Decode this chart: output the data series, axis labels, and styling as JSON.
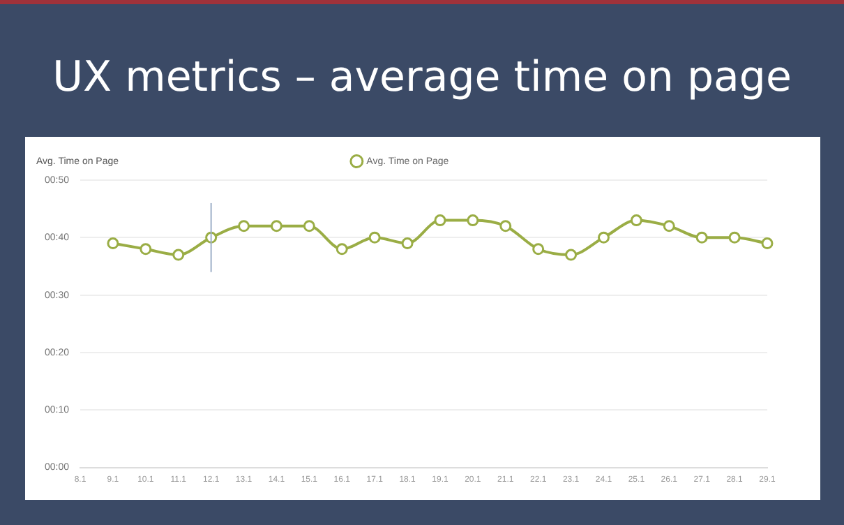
{
  "chart_data": {
    "type": "line",
    "title": "UX metrics – average time on page",
    "ylabel": "Avg. Time on Page",
    "categories": [
      "8.1",
      "9.1",
      "10.1",
      "11.1",
      "12.1",
      "13.1",
      "14.1",
      "15.1",
      "16.1",
      "17.1",
      "18.1",
      "19.1",
      "20.1",
      "21.1",
      "22.1",
      "23.1",
      "24.1",
      "25.1",
      "26.1",
      "27.1",
      "28.1",
      "29.1"
    ],
    "series": [
      {
        "name": "Avg. Time on Page",
        "color": "#9aad45",
        "values": [
          null,
          39,
          38,
          37,
          40,
          42,
          42,
          42,
          38,
          40,
          39,
          43,
          43,
          42,
          38,
          37,
          40,
          43,
          42,
          40,
          40,
          39
        ]
      }
    ],
    "ylim": [
      0,
      50
    ],
    "yticks": [
      {
        "value": 0,
        "label": "00:00"
      },
      {
        "value": 10,
        "label": "00:10"
      },
      {
        "value": 20,
        "label": "00:20"
      },
      {
        "value": 30,
        "label": "00:30"
      },
      {
        "value": 40,
        "label": "00:40"
      },
      {
        "value": 50,
        "label": "00:50"
      }
    ],
    "grid": "y",
    "legend": "top",
    "marker": "circle",
    "ref_lines": [
      {
        "axis": "x",
        "value": "12.1",
        "color": "#9fb0c8"
      }
    ]
  }
}
